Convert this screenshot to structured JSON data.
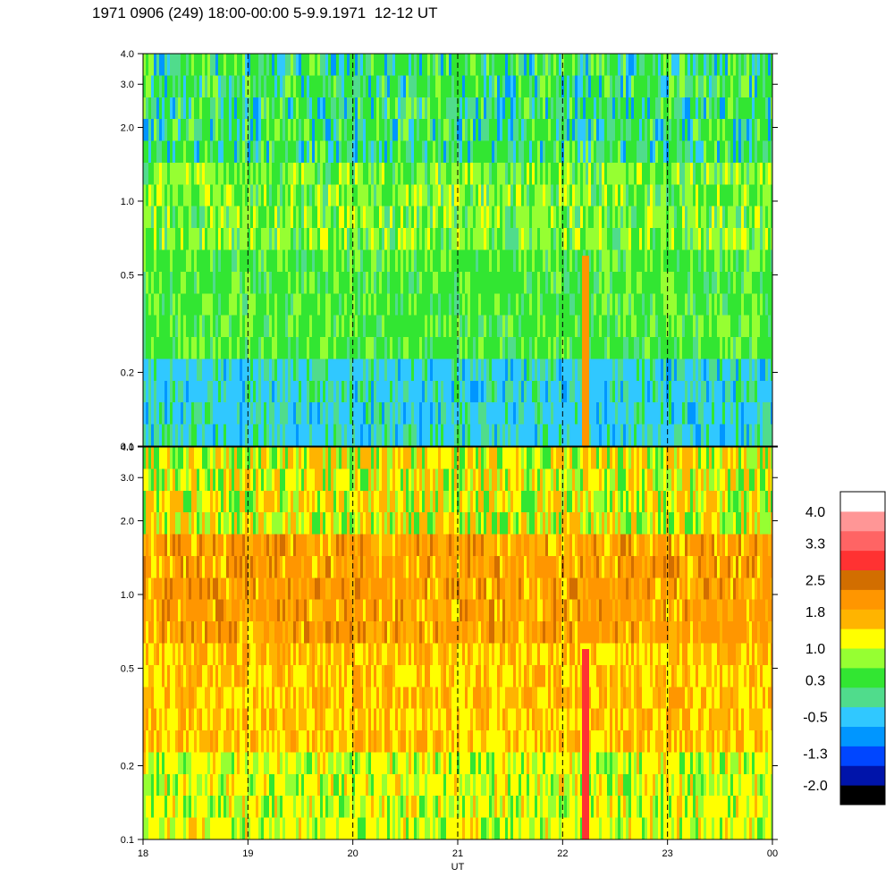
{
  "title": "1971 0906 (249) 18:00-00:00 5-9.9.1971  12-12 UT",
  "chart_data": {
    "type": "heatmap",
    "xlabel": "UT",
    "x_ticks": [
      "18",
      "19",
      "20",
      "21",
      "22",
      "23",
      "00"
    ],
    "x_range": [
      18,
      24
    ],
    "dashed_hour_lines": [
      19,
      20,
      21,
      22,
      23
    ],
    "y_scale": "log",
    "panels": [
      {
        "id": "upper",
        "y_ticks": [
          "0.1",
          "0.2",
          "0.5",
          "1.0",
          "2.0",
          "3.0",
          "4.0"
        ],
        "y_range": [
          0.1,
          4.0
        ],
        "dominant_colors": [
          "#32e632",
          "#96ff32",
          "#50dc8c",
          "#30c8ff"
        ]
      },
      {
        "id": "lower",
        "y_ticks": [
          "0.1",
          "0.2",
          "0.5",
          "1.0",
          "2.0",
          "3.0",
          "4.0"
        ],
        "y_range": [
          0.1,
          4.0
        ],
        "dominant_colors": [
          "#ffb400",
          "#ff9600",
          "#ffff00",
          "#96ff32"
        ]
      }
    ],
    "colorbar": {
      "labels": [
        "4.0",
        "3.3",
        "2.5",
        "1.8",
        "1.0",
        "0.3",
        "-0.5",
        "-1.3",
        "-2.0"
      ],
      "range": [
        -2.0,
        4.0
      ],
      "colors": [
        "#000000",
        "#0014aa",
        "#0046ff",
        "#0096ff",
        "#30c8ff",
        "#50dc8c",
        "#32e632",
        "#96ff32",
        "#ffff00",
        "#ffb400",
        "#ff9600",
        "#d26e00",
        "#ff3232",
        "#ff6464",
        "#ff9696",
        "#ffffff"
      ]
    }
  }
}
